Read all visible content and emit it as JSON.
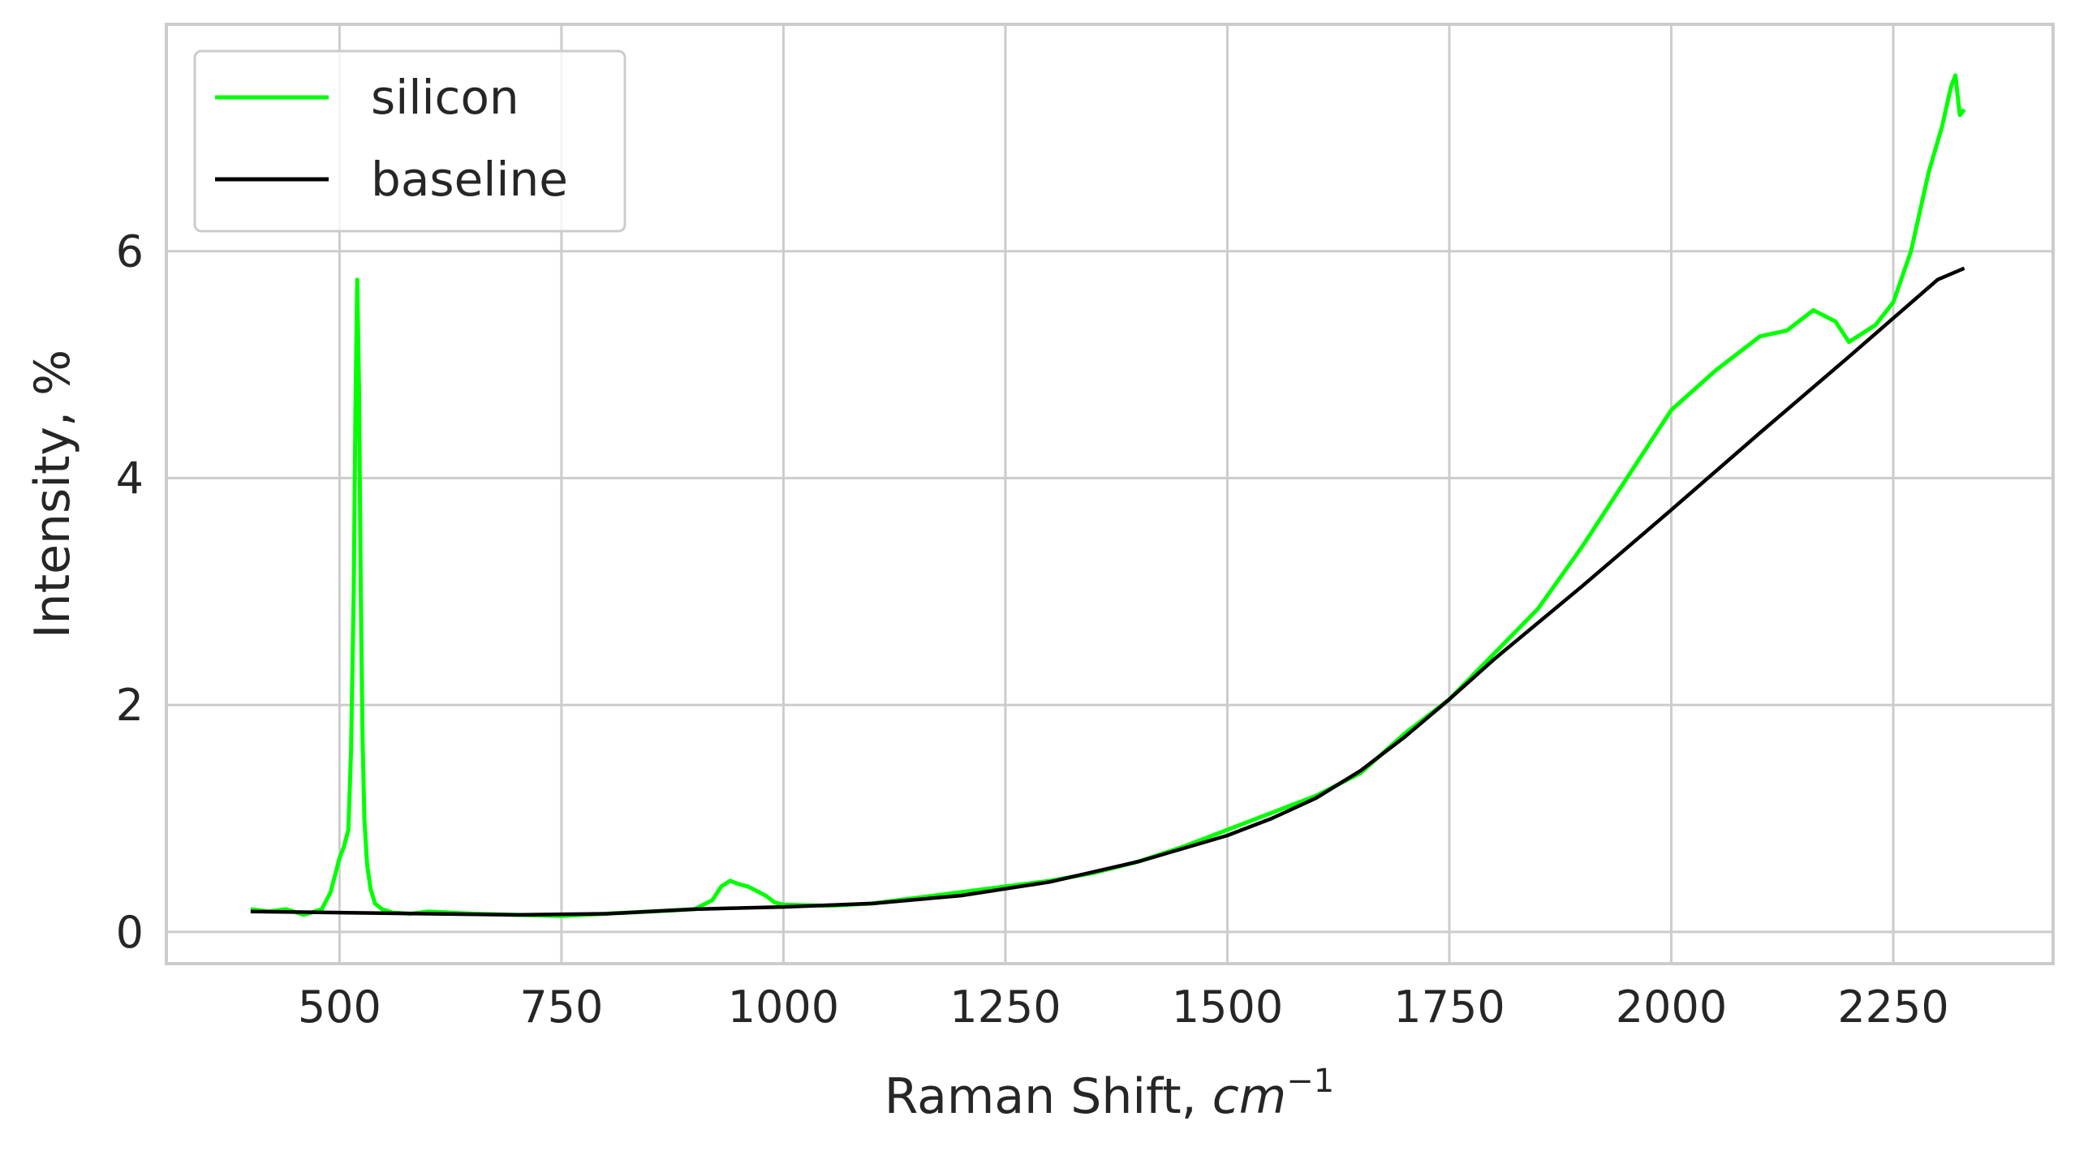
{
  "chart_data": {
    "type": "line",
    "xlabel_main": "Raman Shift, ",
    "xlabel_unit": "cm",
    "xlabel_exp": "−1",
    "ylabel": "Intensity, %",
    "xlim": [
      305,
      2430
    ],
    "ylim": [
      -0.28,
      8.0
    ],
    "xticks": [
      500,
      750,
      1000,
      1250,
      1500,
      1750,
      2000,
      2250
    ],
    "yticks": [
      0,
      2,
      4,
      6
    ],
    "grid": true,
    "legend_position": "top-left",
    "series": [
      {
        "name": "silicon",
        "color": "#00ff00",
        "x": [
          400,
          420,
          440,
          460,
          480,
          490,
          500,
          505,
          510,
          513,
          516,
          518,
          520,
          522,
          524,
          526,
          528,
          531,
          535,
          540,
          548,
          560,
          580,
          600,
          650,
          700,
          750,
          800,
          850,
          900,
          920,
          930,
          940,
          950,
          960,
          970,
          980,
          990,
          1000,
          1050,
          1100,
          1150,
          1200,
          1250,
          1300,
          1350,
          1400,
          1450,
          1500,
          1550,
          1600,
          1650,
          1700,
          1750,
          1800,
          1850,
          1900,
          1950,
          2000,
          2050,
          2100,
          2130,
          2160,
          2185,
          2200,
          2210,
          2230,
          2250,
          2270,
          2290,
          2305,
          2315,
          2320,
          2325,
          2330
        ],
        "y": [
          0.2,
          0.18,
          0.2,
          0.15,
          0.2,
          0.35,
          0.65,
          0.75,
          0.9,
          1.6,
          3.0,
          4.6,
          5.75,
          4.8,
          3.0,
          1.7,
          1.0,
          0.6,
          0.38,
          0.25,
          0.2,
          0.17,
          0.16,
          0.18,
          0.16,
          0.15,
          0.14,
          0.16,
          0.18,
          0.2,
          0.28,
          0.4,
          0.45,
          0.42,
          0.4,
          0.36,
          0.32,
          0.26,
          0.24,
          0.23,
          0.25,
          0.3,
          0.35,
          0.4,
          0.45,
          0.52,
          0.62,
          0.75,
          0.9,
          1.05,
          1.2,
          1.4,
          1.75,
          2.05,
          2.45,
          2.85,
          3.4,
          4.0,
          4.6,
          4.95,
          5.25,
          5.3,
          5.48,
          5.38,
          5.2,
          5.25,
          5.35,
          5.55,
          6.0,
          6.7,
          7.1,
          7.45,
          7.55,
          7.2,
          7.25
        ]
      },
      {
        "name": "baseline",
        "color": "#000000",
        "x": [
          400,
          500,
          600,
          700,
          800,
          900,
          1000,
          1100,
          1200,
          1300,
          1400,
          1500,
          1550,
          1600,
          1650,
          1700,
          1750,
          1800,
          1900,
          2000,
          2100,
          2200,
          2300,
          2330
        ],
        "y": [
          0.18,
          0.17,
          0.16,
          0.15,
          0.16,
          0.2,
          0.22,
          0.25,
          0.32,
          0.44,
          0.62,
          0.85,
          1.0,
          1.18,
          1.42,
          1.72,
          2.05,
          2.4,
          3.05,
          3.72,
          4.4,
          5.07,
          5.75,
          5.85
        ]
      }
    ]
  }
}
